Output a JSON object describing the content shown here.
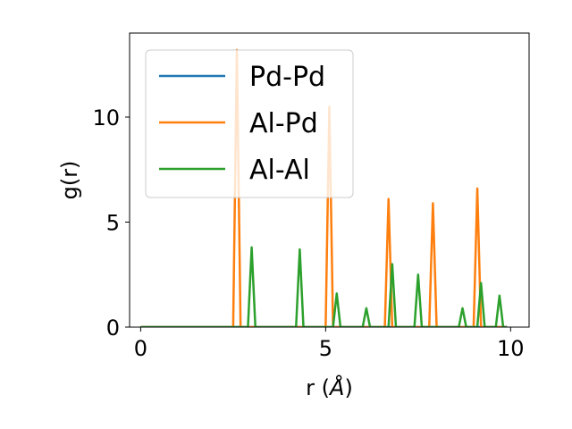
{
  "chart_data": {
    "type": "line",
    "xlabel_prefix": "r (",
    "xlabel_unit": "Å",
    "xlabel_suffix": ")",
    "ylabel": "g(r)",
    "xlim": [
      -0.3,
      10.5
    ],
    "ylim": [
      0,
      14
    ],
    "xticks": [
      0,
      5,
      10
    ],
    "yticks": [
      0,
      5,
      10
    ],
    "grid": false,
    "legend_position": "top-left",
    "series": [
      {
        "name": "Pd-Pd",
        "color": "#1f77b4",
        "x": [
          0,
          9.9
        ],
        "y": [
          0,
          0
        ]
      },
      {
        "name": "Al-Pd",
        "color": "#ff7f0e",
        "x": [
          0,
          2.5,
          2.6,
          2.7,
          5.0,
          5.1,
          5.2,
          6.6,
          6.7,
          6.8,
          7.8,
          7.9,
          8.0,
          9.0,
          9.1,
          9.2,
          9.9
        ],
        "y": [
          0,
          0,
          13.2,
          0,
          0,
          10.5,
          0,
          0,
          6.1,
          0,
          0,
          5.9,
          0,
          0,
          6.6,
          0,
          0
        ]
      },
      {
        "name": "Al-Al",
        "color": "#2ca02c",
        "x": [
          0,
          2.9,
          3.0,
          3.1,
          4.2,
          4.3,
          4.4,
          5.2,
          5.3,
          5.4,
          6.0,
          6.1,
          6.2,
          6.7,
          6.8,
          6.9,
          7.4,
          7.5,
          7.6,
          8.6,
          8.7,
          8.8,
          9.1,
          9.2,
          9.3,
          9.6,
          9.7,
          9.8,
          9.9
        ],
        "y": [
          0,
          0,
          3.8,
          0,
          0,
          3.7,
          0,
          0,
          1.6,
          0,
          0,
          0.9,
          0,
          0,
          3.0,
          0,
          0,
          2.5,
          0,
          0,
          0.9,
          0,
          0,
          2.1,
          0,
          0,
          1.5,
          0,
          0
        ]
      }
    ]
  }
}
